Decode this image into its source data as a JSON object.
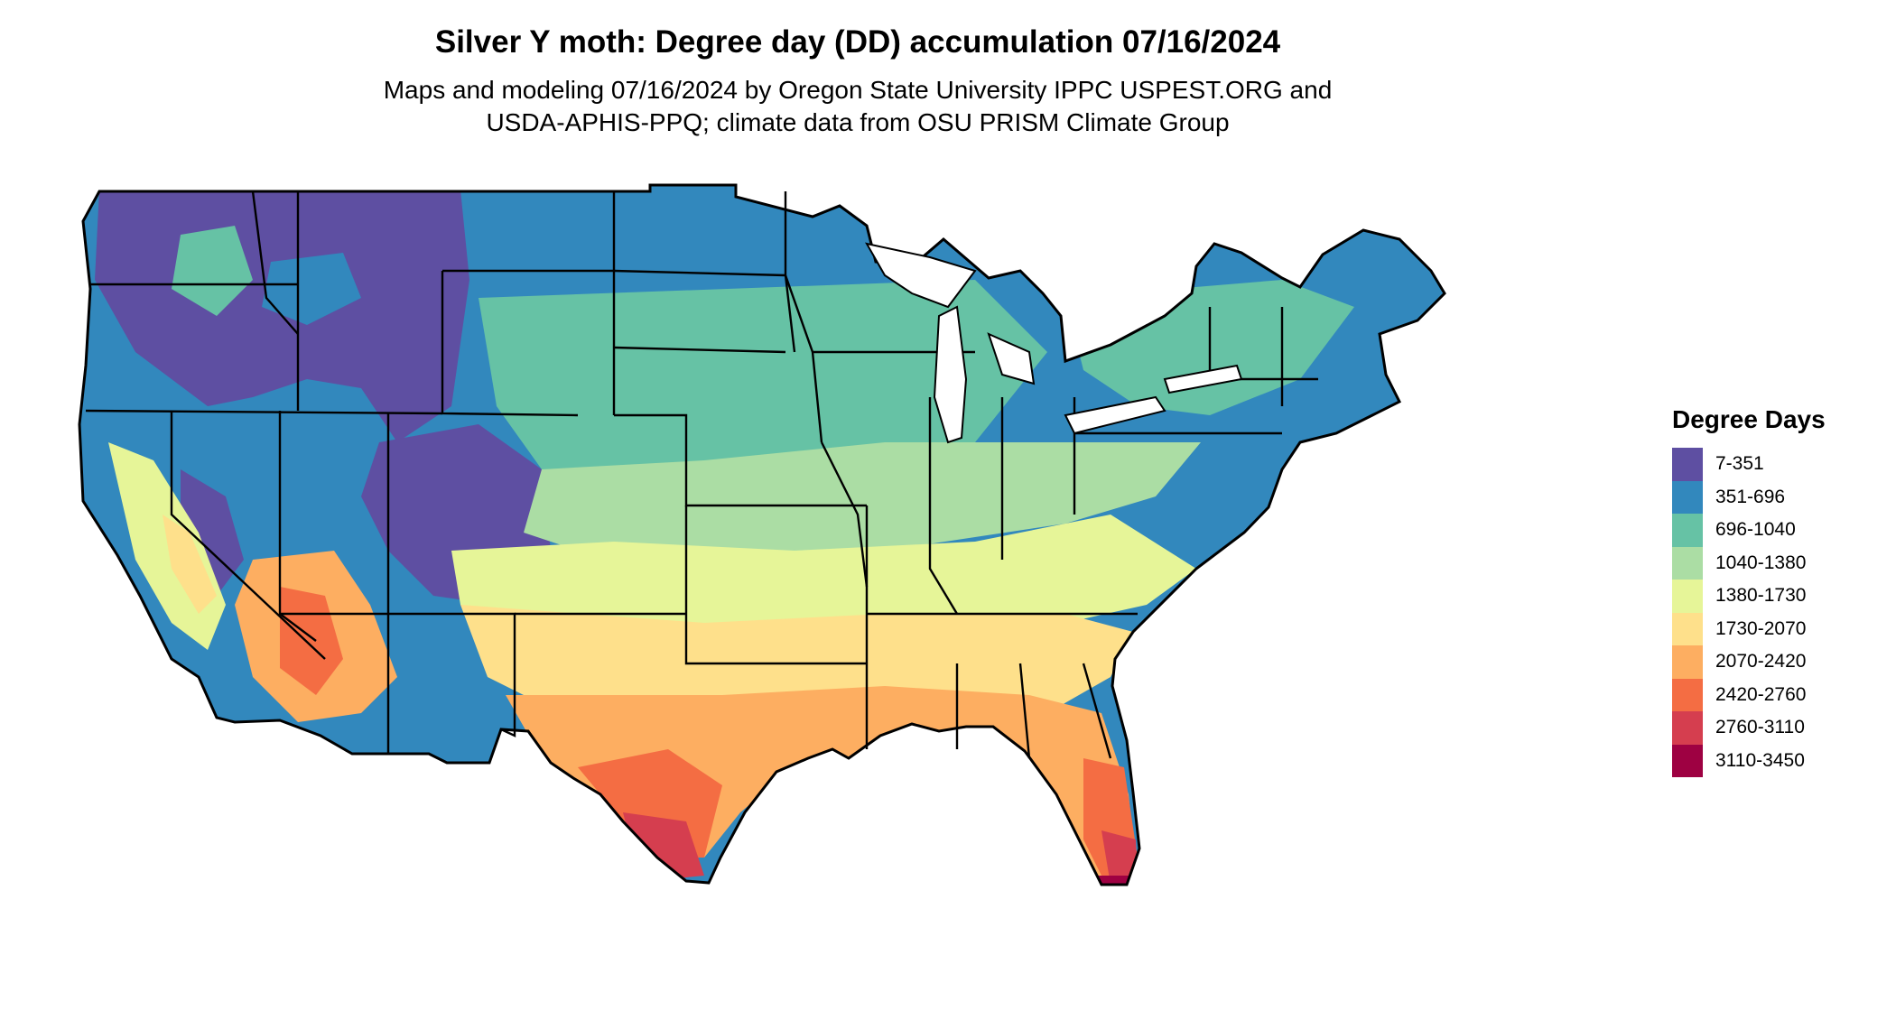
{
  "title": "Silver Y moth: Degree day (DD) accumulation 07/16/2024",
  "subtitle": "Maps and modeling 07/16/2024 by Oregon State University IPPC USPEST.ORG and\nUSDA-APHIS-PPQ; climate data from OSU PRISM Climate Group",
  "legend": {
    "title": "Degree Days",
    "items": [
      {
        "label": "7-351",
        "color": "#5e4fa2"
      },
      {
        "label": "351-696",
        "color": "#3288bd"
      },
      {
        "label": "696-1040",
        "color": "#66c2a5"
      },
      {
        "label": "1040-1380",
        "color": "#abdda4"
      },
      {
        "label": "1380-1730",
        "color": "#e6f598"
      },
      {
        "label": "1730-2070",
        "color": "#fee08b"
      },
      {
        "label": "2070-2420",
        "color": "#fdae61"
      },
      {
        "label": "2420-2760",
        "color": "#f46d43"
      },
      {
        "label": "2760-3110",
        "color": "#d53e4f"
      },
      {
        "label": "3110-3450",
        "color": "#9e0142"
      }
    ]
  }
}
